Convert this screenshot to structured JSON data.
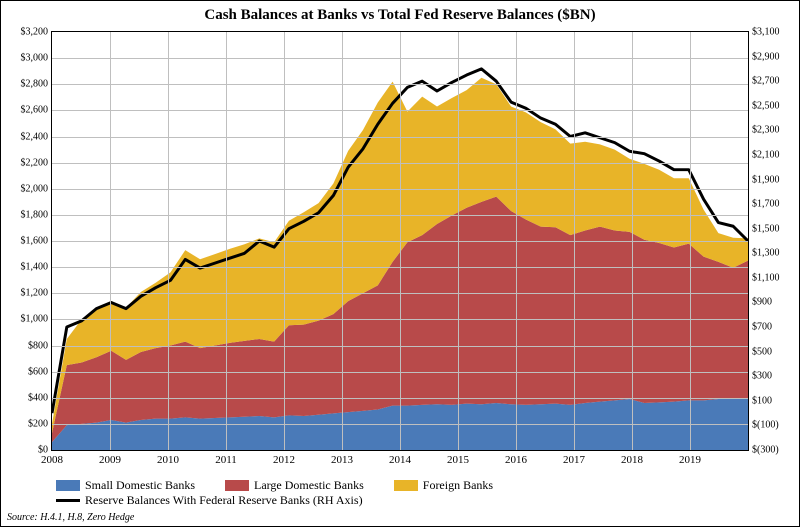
{
  "chart": {
    "type": "stacked-area-with-line",
    "title": "Cash Balances at Banks vs Total Fed Reserve Balances ($BN)",
    "background_color": "#ffffff",
    "grid_color": "#bfbfbf",
    "border_color": "#000000",
    "title_fontsize": 15,
    "axis_fontsize": 10,
    "x_axis": {
      "ticks": [
        2008,
        2009,
        2010,
        2011,
        2012,
        2013,
        2014,
        2015,
        2016,
        2017,
        2018,
        2019
      ],
      "min": 2008,
      "max": 2020
    },
    "y_axis_left": {
      "label_prefix": "$",
      "min": 0,
      "max": 3200,
      "tick_step": 200,
      "ticks": [
        0,
        200,
        400,
        600,
        800,
        1000,
        1200,
        1400,
        1600,
        1800,
        2000,
        2200,
        2400,
        2600,
        2800,
        3000,
        3200
      ]
    },
    "y_axis_right": {
      "label_prefix": "$",
      "min": -300,
      "max": 3100,
      "tick_step": 200,
      "ticks": [
        -300,
        -100,
        100,
        300,
        500,
        700,
        900,
        1100,
        1300,
        1500,
        1700,
        1900,
        2100,
        2300,
        2500,
        2700,
        2900,
        3100
      ]
    },
    "series": {
      "small_domestic": {
        "label": "Small Domestic Banks",
        "color": "#4a7ab8",
        "data": [
          60,
          190,
          200,
          210,
          230,
          210,
          230,
          240,
          240,
          250,
          240,
          245,
          250,
          255,
          260,
          250,
          265,
          260,
          270,
          280,
          290,
          300,
          310,
          340,
          340,
          345,
          350,
          345,
          355,
          350,
          360,
          350,
          345,
          350,
          355,
          345,
          360,
          370,
          380,
          390,
          360,
          365,
          370,
          380,
          380,
          390,
          395,
          390
        ]
      },
      "large_domestic": {
        "label": "Large Domestic Banks",
        "color": "#b84a4a",
        "data": [
          70,
          460,
          470,
          500,
          530,
          480,
          520,
          540,
          560,
          580,
          540,
          555,
          570,
          580,
          590,
          580,
          690,
          700,
          720,
          760,
          850,
          900,
          950,
          1100,
          1250,
          1300,
          1380,
          1450,
          1500,
          1550,
          1580,
          1480,
          1420,
          1360,
          1350,
          1300,
          1320,
          1340,
          1300,
          1280,
          1250,
          1220,
          1180,
          1200,
          1100,
          1050,
          1000,
          1060
        ]
      },
      "foreign": {
        "label": "Foreign Banks",
        "color": "#e8b428",
        "data": [
          70,
          200,
          330,
          380,
          380,
          400,
          460,
          500,
          560,
          700,
          680,
          700,
          720,
          740,
          770,
          760,
          800,
          860,
          900,
          1000,
          1150,
          1250,
          1400,
          1380,
          1000,
          1060,
          900,
          900,
          900,
          950,
          860,
          800,
          820,
          800,
          750,
          700,
          680,
          630,
          620,
          560,
          580,
          560,
          530,
          500,
          360,
          220,
          230,
          170
        ]
      },
      "reserves_line": {
        "label": "Reserve Balances With Federal Reserve Banks (RH Axis)",
        "color": "#000000",
        "line_width": 3,
        "data": [
          0,
          700,
          750,
          850,
          900,
          850,
          950,
          1020,
          1080,
          1250,
          1180,
          1220,
          1260,
          1300,
          1400,
          1350,
          1500,
          1560,
          1630,
          1770,
          2000,
          2150,
          2350,
          2520,
          2650,
          2700,
          2620,
          2690,
          2750,
          2800,
          2700,
          2530,
          2480,
          2400,
          2350,
          2250,
          2280,
          2240,
          2200,
          2130,
          2110,
          2050,
          1980,
          1980,
          1740,
          1550,
          1520,
          1400
        ]
      }
    },
    "legend_items": [
      {
        "key": "small_domestic",
        "type": "swatch"
      },
      {
        "key": "large_domestic",
        "type": "swatch"
      },
      {
        "key": "foreign",
        "type": "swatch"
      },
      {
        "key": "reserves_line",
        "type": "line"
      }
    ],
    "source": "Source: H.4.1, H.8, Zero Hedge"
  }
}
